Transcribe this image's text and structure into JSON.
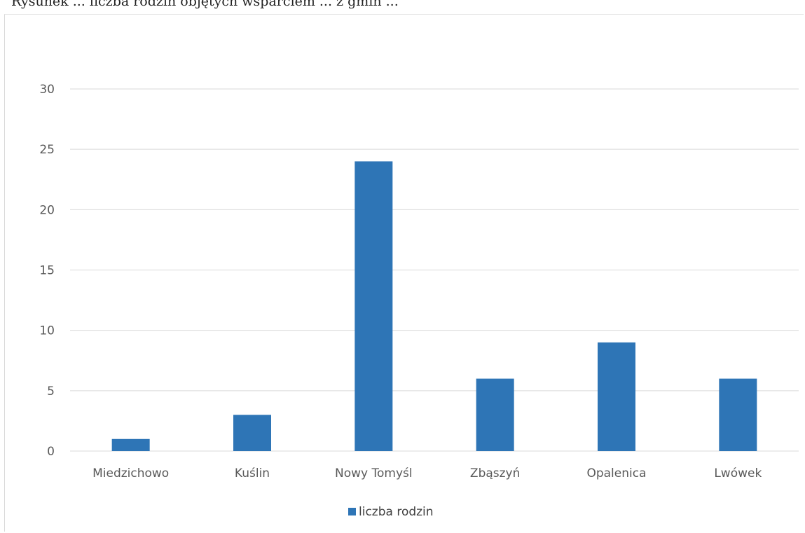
{
  "header": {
    "text": "Rysunek ... liczba rodzin objętych wsparciem ... z gmin ..."
  },
  "chart_data": {
    "type": "bar",
    "categories": [
      "Miedzichowo",
      "Kuślin",
      "Nowy Tomyśl",
      "Zbąszyń",
      "Opalenica",
      "Lwówek"
    ],
    "series": [
      {
        "name": "liczba rodzin",
        "values": [
          1,
          3,
          24,
          6,
          9,
          6
        ]
      }
    ],
    "ylim": [
      0,
      30
    ],
    "yticks": [
      0,
      5,
      10,
      15,
      20,
      25,
      30
    ],
    "yticklabels": [
      "0",
      "5",
      "10",
      "15",
      "20",
      "25",
      "30"
    ],
    "grid": true,
    "legend": "bottom-center",
    "colors": {
      "bar": "#2e75b6",
      "grid": "#d9d9d9",
      "axis_text": "#595959"
    }
  }
}
